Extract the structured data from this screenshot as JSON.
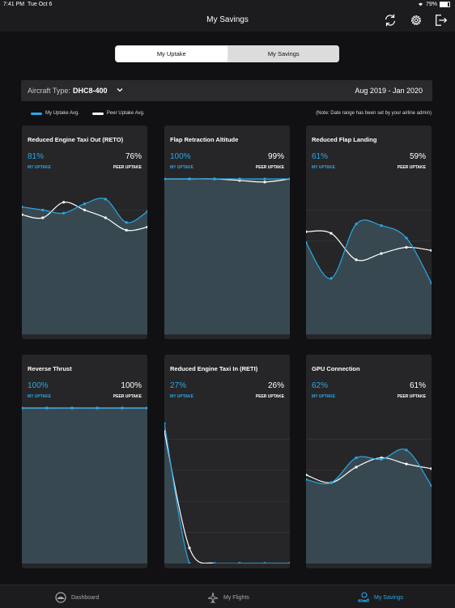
{
  "status_bar": {
    "time": "7:41 PM",
    "date": "Tue Oct 6",
    "battery": "79%"
  },
  "nav": {
    "title": "My Savings"
  },
  "segments": {
    "uptake": "My Uptake",
    "savings": "My Savings"
  },
  "filter": {
    "label": "Aircraft Type:",
    "value": "DHC8-400",
    "date_range": "Aug 2019 - Jan 2020"
  },
  "legend": {
    "mine": "My Uptake Avg.",
    "peer": "Peer Uptake Avg.",
    "note": "(Note: Date range has been set by your airline admin)"
  },
  "labels": {
    "my_uptake": "MY UPTAKE",
    "peer_uptake": "PEER UPTAKE"
  },
  "colors": {
    "mine": "#28a8e8",
    "peer": "#ffffff",
    "fill": "#3b4d54",
    "bg": "#111113",
    "card": "#262628"
  },
  "cards": [
    {
      "title": "Reduced Engine Taxi Out (RETO)",
      "my": "81%",
      "peer": "76%"
    },
    {
      "title": "Flap Retraction Altitude",
      "my": "100%",
      "peer": "99%"
    },
    {
      "title": "Reduced Flap Landing",
      "my": "61%",
      "peer": "59%"
    },
    {
      "title": "Reverse Thrust",
      "my": "100%",
      "peer": "100%"
    },
    {
      "title": "Reduced Engine Taxi In (RETI)",
      "my": "27%",
      "peer": "26%"
    },
    {
      "title": "GPU Connection",
      "my": "62%",
      "peer": "61%"
    }
  ],
  "chart_data": [
    {
      "type": "line",
      "ylim": [
        0,
        100
      ],
      "series": [
        {
          "name": "My Uptake Avg.",
          "values": [
            82,
            80,
            78,
            84,
            87,
            72,
            79
          ]
        },
        {
          "name": "Peer Uptake Avg.",
          "values": [
            77,
            75,
            85,
            80,
            75,
            67,
            69
          ]
        }
      ]
    },
    {
      "type": "line",
      "ylim": [
        0,
        100
      ],
      "series": [
        {
          "name": "My Uptake Avg.",
          "values": [
            100,
            100,
            100,
            100,
            100,
            100
          ]
        },
        {
          "name": "Peer Uptake Avg.",
          "values": [
            100,
            100,
            100,
            99,
            98,
            100
          ]
        }
      ]
    },
    {
      "type": "line",
      "ylim": [
        0,
        100
      ],
      "series": [
        {
          "name": "My Uptake Avg.",
          "values": [
            59,
            36,
            71,
            70,
            62,
            33
          ]
        },
        {
          "name": "Peer Uptake Avg.",
          "values": [
            66,
            65,
            48,
            52,
            56,
            54
          ]
        }
      ]
    },
    {
      "type": "line",
      "ylim": [
        0,
        100
      ],
      "series": [
        {
          "name": "My Uptake Avg.",
          "values": [
            100,
            100,
            100,
            100,
            100,
            100
          ]
        },
        {
          "name": "Peer Uptake Avg.",
          "values": [
            100,
            100,
            100,
            100,
            100,
            100
          ]
        }
      ]
    },
    {
      "type": "line",
      "ylim": [
        0,
        100
      ],
      "series": [
        {
          "name": "My Uptake Avg.",
          "values": [
            90,
            0,
            0,
            0,
            0,
            0
          ]
        },
        {
          "name": "Peer Uptake Avg.",
          "values": [
            85,
            10,
            0,
            0,
            0,
            0
          ]
        }
      ]
    },
    {
      "type": "line",
      "ylim": [
        0,
        100
      ],
      "series": [
        {
          "name": "My Uptake Avg.",
          "values": [
            54,
            52,
            68,
            67,
            73,
            50
          ]
        },
        {
          "name": "Peer Uptake Avg.",
          "values": [
            57,
            52,
            62,
            68,
            64,
            61
          ]
        }
      ]
    }
  ]
}
